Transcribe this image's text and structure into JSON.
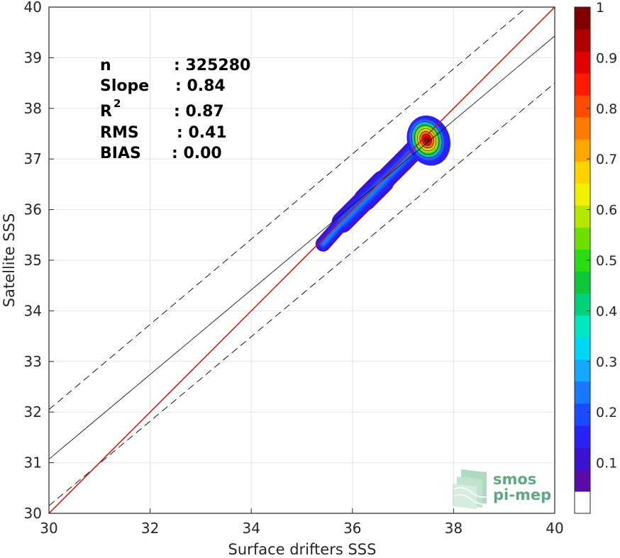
{
  "chart_data": {
    "type": "heatmap",
    "xlabel": "Surface drifters SSS",
    "ylabel": "Satellite SSS",
    "xlim": [
      30,
      40
    ],
    "ylim": [
      30,
      40
    ],
    "xticks": [
      "30",
      "32",
      "34",
      "36",
      "38",
      "40"
    ],
    "yticks": [
      "30",
      "31",
      "32",
      "33",
      "34",
      "35",
      "36",
      "37",
      "38",
      "39",
      "40"
    ],
    "grid": true,
    "stats": {
      "n": {
        "label": "n",
        "value": ": 325280"
      },
      "slope": {
        "label": "Slope",
        "value": ": 0.84"
      },
      "r2": {
        "label": "R",
        "sup": "2",
        "value": ": 0.87"
      },
      "rms": {
        "label": "RMS",
        "value": ": 0.41"
      },
      "bias": {
        "label": "BIAS",
        "value": ": 0.00"
      }
    },
    "lines": {
      "identity": {
        "color": "#e00000",
        "x": [
          30,
          40
        ],
        "y": [
          30,
          40
        ]
      },
      "regression": {
        "color": "#000000",
        "style": "solid",
        "x": [
          30,
          40
        ],
        "y": [
          31.07,
          39.43
        ]
      },
      "upper_bound": {
        "color": "#000000",
        "style": "dashed",
        "x": [
          30,
          39.45
        ],
        "y": [
          32.05,
          40
        ]
      },
      "lower_bound": {
        "color": "#000000",
        "style": "dashed",
        "x": [
          30,
          40
        ],
        "y": [
          30.15,
          38.5
        ]
      }
    },
    "density_ridge": [
      {
        "x": 35.42,
        "y": 35.32,
        "w": 0.3
      },
      {
        "x": 35.8,
        "y": 35.75,
        "w": 0.42
      },
      {
        "x": 36.25,
        "y": 36.2,
        "w": 0.55
      },
      {
        "x": 36.6,
        "y": 36.55,
        "w": 0.45
      },
      {
        "x": 37.0,
        "y": 36.95,
        "w": 0.4
      },
      {
        "x": 37.42,
        "y": 37.38,
        "w": 0.62
      }
    ],
    "density_peak": {
      "x": 37.47,
      "y": 37.38,
      "value": 1.0
    },
    "colorbar": {
      "ticks": [
        "0.1",
        "0.2",
        "0.3",
        "0.4",
        "0.5",
        "0.6",
        "0.7",
        "0.8",
        "0.9",
        "1"
      ],
      "range": [
        0,
        1
      ],
      "colors": [
        "#ffffff",
        "#5a0aa8",
        "#3a14d2",
        "#2a22f5",
        "#1a4bff",
        "#1a78ff",
        "#16a8ff",
        "#00d7f5",
        "#00e8c0",
        "#00d27a",
        "#0ec83a",
        "#2adc12",
        "#6ee000",
        "#b4e800",
        "#f0f000",
        "#ffd200",
        "#ffa500",
        "#ff7a00",
        "#ff4b00",
        "#ff1a00",
        "#e00000",
        "#b00000",
        "#800000"
      ]
    }
  },
  "watermark": {
    "line1": "smos",
    "line2": "pi-mep",
    "color": "#5fa882"
  }
}
